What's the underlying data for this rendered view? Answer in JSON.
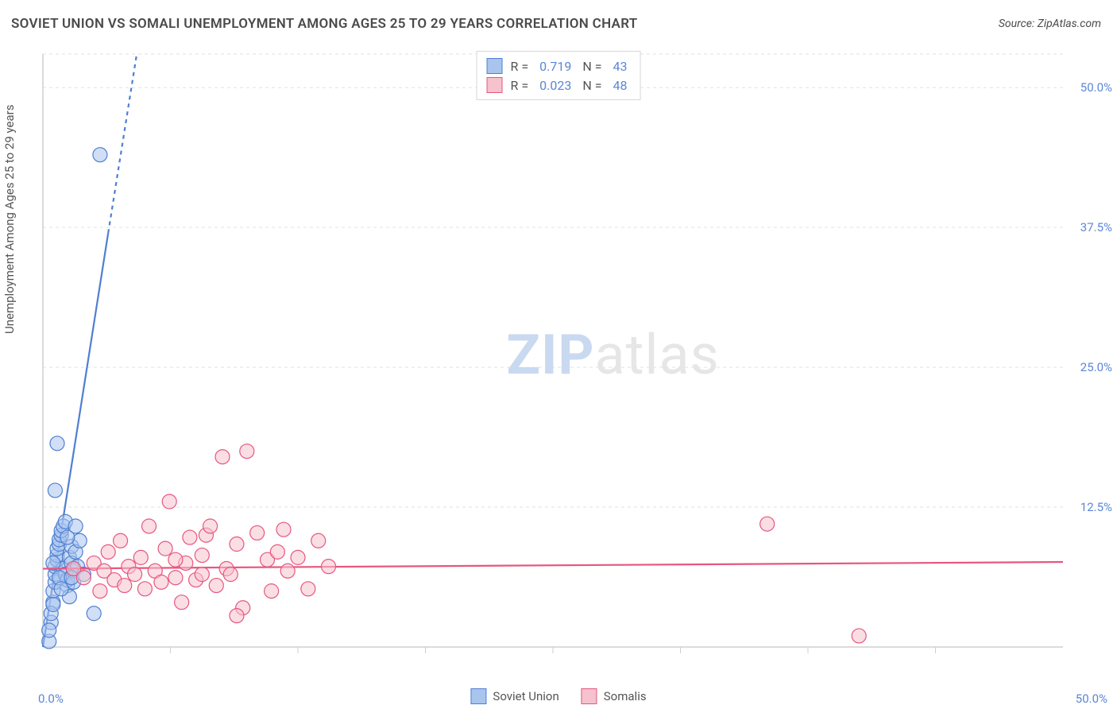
{
  "title": "SOVIET UNION VS SOMALI UNEMPLOYMENT AMONG AGES 25 TO 29 YEARS CORRELATION CHART",
  "source": "Source: ZipAtlas.com",
  "ylabel": "Unemployment Among Ages 25 to 29 years",
  "watermark": {
    "bold": "ZIP",
    "rest": "atlas"
  },
  "chart": {
    "type": "scatter",
    "background_color": "#ffffff",
    "grid_color": "#e2e2e2",
    "grid_dash": "4 4",
    "axis_color": "#cfcfcf",
    "tick_font_color": "#5b86d6",
    "tick_fontsize": 15,
    "label_fontsize": 15,
    "label_color": "#555555",
    "xlim": [
      0,
      50
    ],
    "ylim": [
      0,
      53
    ],
    "xticks_minor": [
      6.25,
      12.5,
      18.75,
      25,
      31.25,
      37.5,
      43.75
    ],
    "yticks": [
      12.5,
      25.0,
      37.5,
      50.0
    ],
    "ytick_labels": [
      "12.5%",
      "25.0%",
      "37.5%",
      "50.0%"
    ],
    "xtick_min_label": "0.0%",
    "xtick_max_label": "50.0%",
    "marker_radius": 9,
    "marker_opacity": 0.55,
    "line_width": 2.2,
    "series": [
      {
        "name": "Soviet Union",
        "color_fill": "#a9c5ee",
        "color_stroke": "#4f7fd1",
        "r_value": "0.719",
        "n_value": "43",
        "trend": {
          "solid": {
            "x1": 0,
            "y1": 0,
            "x2": 3.2,
            "y2": 37
          },
          "dashed": {
            "x1": 3.2,
            "y1": 37,
            "x2": 4.6,
            "y2": 53
          }
        },
        "points": [
          [
            0.3,
            0.5
          ],
          [
            0.4,
            2.2
          ],
          [
            0.5,
            4.0
          ],
          [
            0.5,
            5.0
          ],
          [
            0.6,
            5.8
          ],
          [
            0.6,
            6.5
          ],
          [
            0.6,
            7.2
          ],
          [
            0.7,
            7.8
          ],
          [
            0.7,
            8.2
          ],
          [
            0.7,
            8.8
          ],
          [
            0.8,
            9.2
          ],
          [
            0.8,
            9.6
          ],
          [
            0.9,
            10.0
          ],
          [
            0.9,
            10.4
          ],
          [
            1.0,
            10.8
          ],
          [
            1.0,
            7.0
          ],
          [
            1.1,
            6.5
          ],
          [
            1.1,
            11.2
          ],
          [
            1.2,
            5.5
          ],
          [
            1.2,
            6.0
          ],
          [
            1.3,
            8.0
          ],
          [
            1.3,
            4.5
          ],
          [
            1.4,
            9.0
          ],
          [
            1.4,
            7.5
          ],
          [
            1.5,
            6.8
          ],
          [
            1.5,
            5.8
          ],
          [
            1.6,
            8.5
          ],
          [
            1.7,
            7.2
          ],
          [
            1.8,
            9.5
          ],
          [
            0.4,
            3.0
          ],
          [
            0.5,
            3.8
          ],
          [
            0.6,
            14.0
          ],
          [
            0.3,
            1.5
          ],
          [
            0.8,
            6.2
          ],
          [
            2.5,
            3.0
          ],
          [
            2.0,
            6.5
          ],
          [
            0.7,
            18.2
          ],
          [
            1.2,
            9.8
          ],
          [
            1.4,
            6.2
          ],
          [
            1.6,
            10.8
          ],
          [
            0.5,
            7.5
          ],
          [
            0.9,
            5.2
          ],
          [
            2.8,
            44.0
          ]
        ]
      },
      {
        "name": "Somalis",
        "color_fill": "#f5c2ce",
        "color_stroke": "#e6577f",
        "r_value": "0.023",
        "n_value": "48",
        "trend": {
          "solid": {
            "x1": 0,
            "y1": 7.0,
            "x2": 50,
            "y2": 7.6
          }
        },
        "points": [
          [
            1.5,
            7.0
          ],
          [
            2.0,
            6.2
          ],
          [
            2.5,
            7.5
          ],
          [
            2.8,
            5.0
          ],
          [
            3.0,
            6.8
          ],
          [
            3.2,
            8.5
          ],
          [
            3.5,
            6.0
          ],
          [
            3.8,
            9.5
          ],
          [
            4.0,
            5.5
          ],
          [
            4.2,
            7.2
          ],
          [
            4.5,
            6.5
          ],
          [
            4.8,
            8.0
          ],
          [
            5.0,
            5.2
          ],
          [
            5.2,
            10.8
          ],
          [
            5.5,
            6.8
          ],
          [
            5.8,
            5.8
          ],
          [
            6.0,
            8.8
          ],
          [
            6.2,
            13.0
          ],
          [
            6.5,
            6.2
          ],
          [
            6.8,
            4.0
          ],
          [
            7.0,
            7.5
          ],
          [
            7.2,
            9.8
          ],
          [
            7.5,
            6.0
          ],
          [
            7.8,
            8.2
          ],
          [
            8.0,
            10.0
          ],
          [
            8.2,
            10.8
          ],
          [
            8.5,
            5.5
          ],
          [
            8.8,
            17.0
          ],
          [
            9.0,
            7.0
          ],
          [
            9.2,
            6.5
          ],
          [
            9.5,
            9.2
          ],
          [
            9.8,
            3.5
          ],
          [
            10.0,
            17.5
          ],
          [
            10.5,
            10.2
          ],
          [
            11.0,
            7.8
          ],
          [
            11.2,
            5.0
          ],
          [
            11.5,
            8.5
          ],
          [
            11.8,
            10.5
          ],
          [
            12.0,
            6.8
          ],
          [
            12.5,
            8.0
          ],
          [
            13.0,
            5.2
          ],
          [
            13.5,
            9.5
          ],
          [
            14.0,
            7.2
          ],
          [
            35.5,
            11.0
          ],
          [
            40.0,
            1.0
          ],
          [
            9.5,
            2.8
          ],
          [
            6.5,
            7.8
          ],
          [
            7.8,
            6.5
          ]
        ]
      }
    ]
  },
  "legend_top": {
    "r_label": "R =",
    "n_label": "N ="
  },
  "legend_bottom": [
    {
      "label": "Soviet Union",
      "fill": "#a9c5ee",
      "stroke": "#4f7fd1"
    },
    {
      "label": "Somalis",
      "fill": "#f5c2ce",
      "stroke": "#e6577f"
    }
  ]
}
